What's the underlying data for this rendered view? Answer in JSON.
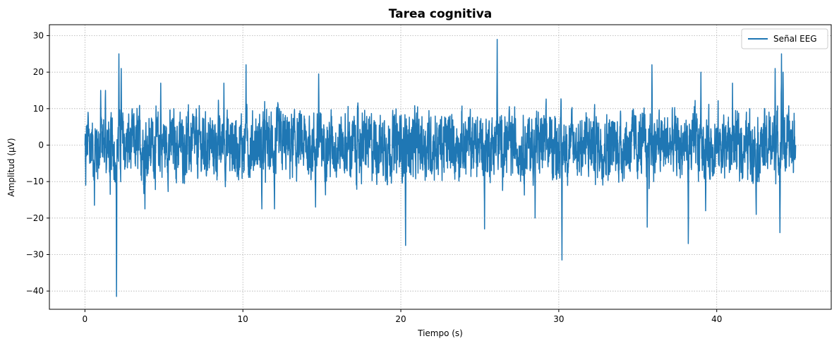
{
  "chart_data": {
    "type": "line",
    "title": "Tarea cognitiva",
    "xlabel": "Tiempo (s)",
    "ylabel": "Amplitud (µV)",
    "xlim": [
      -2.25,
      47.25
    ],
    "ylim": [
      -45,
      33
    ],
    "xticks": [
      0,
      10,
      20,
      30,
      40
    ],
    "yticks": [
      -40,
      -30,
      -20,
      -10,
      0,
      10,
      20,
      30
    ],
    "xtick_labels": [
      "0",
      "10",
      "20",
      "30",
      "40"
    ],
    "ytick_labels": [
      "−40",
      "−30",
      "−20",
      "−10",
      "0",
      "10",
      "20",
      "30"
    ],
    "grid": true,
    "legend": {
      "position": "top-right",
      "entries": [
        "Señal EEG"
      ]
    },
    "series": [
      {
        "name": "Señal EEG",
        "color": "#1f77b4",
        "x_start": 0,
        "x_end": 45,
        "baseline_noise_amplitude": 6,
        "range_approx": [
          -41.5,
          29
        ],
        "notable_points": [
          {
            "x": 0.0,
            "y": 0
          },
          {
            "x": 0.05,
            "y": -11
          },
          {
            "x": 0.2,
            "y": 9
          },
          {
            "x": 0.6,
            "y": -16.5
          },
          {
            "x": 1.0,
            "y": 15
          },
          {
            "x": 1.3,
            "y": 15
          },
          {
            "x": 1.6,
            "y": -13.5
          },
          {
            "x": 1.9,
            "y": -10
          },
          {
            "x": 2.0,
            "y": -41.5
          },
          {
            "x": 2.15,
            "y": 25
          },
          {
            "x": 2.3,
            "y": 21
          },
          {
            "x": 3.8,
            "y": -17.5
          },
          {
            "x": 4.8,
            "y": 17
          },
          {
            "x": 8.8,
            "y": 17
          },
          {
            "x": 10.2,
            "y": 22
          },
          {
            "x": 11.2,
            "y": -17.5
          },
          {
            "x": 12.0,
            "y": -17.5
          },
          {
            "x": 14.8,
            "y": 19.5
          },
          {
            "x": 14.6,
            "y": -17
          },
          {
            "x": 20.3,
            "y": -27.5
          },
          {
            "x": 25.3,
            "y": -23
          },
          {
            "x": 26.1,
            "y": 29
          },
          {
            "x": 28.5,
            "y": -20
          },
          {
            "x": 30.2,
            "y": -31.5
          },
          {
            "x": 35.6,
            "y": -22.5
          },
          {
            "x": 35.9,
            "y": 22
          },
          {
            "x": 38.2,
            "y": -27
          },
          {
            "x": 39.0,
            "y": 20
          },
          {
            "x": 39.3,
            "y": -18
          },
          {
            "x": 41.0,
            "y": 17
          },
          {
            "x": 42.5,
            "y": -19
          },
          {
            "x": 43.7,
            "y": 21
          },
          {
            "x": 44.0,
            "y": -24
          },
          {
            "x": 44.1,
            "y": 25
          },
          {
            "x": 44.2,
            "y": 20
          },
          {
            "x": 45.0,
            "y": 0
          }
        ]
      }
    ]
  }
}
